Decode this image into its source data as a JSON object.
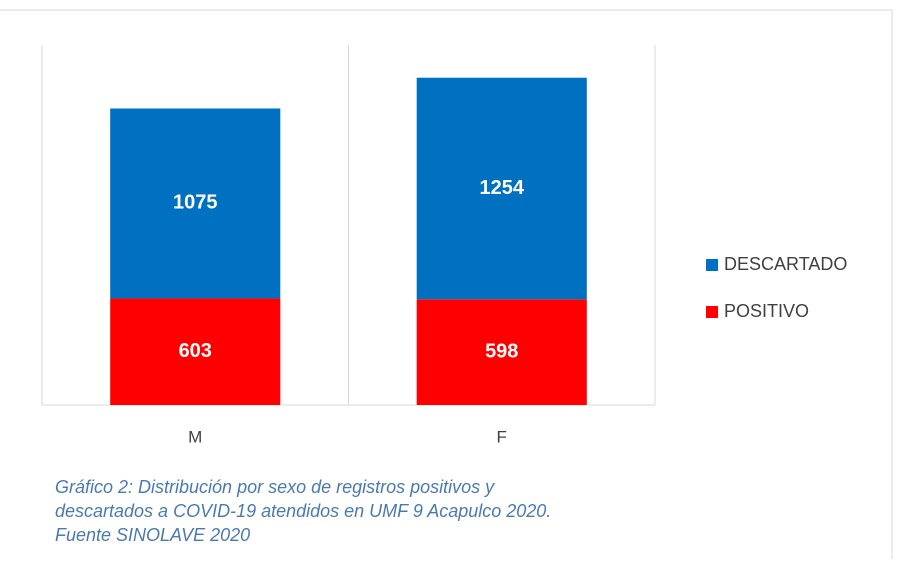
{
  "chart_data": {
    "type": "stacked_bar",
    "categories": [
      "M",
      "F"
    ],
    "series": [
      {
        "name": "POSITIVO",
        "color": "#ff0000",
        "values": [
          603,
          598
        ]
      },
      {
        "name": "DESCARTADO",
        "color": "#0070c0",
        "values": [
          1075,
          1254
        ]
      }
    ],
    "legend": "right",
    "caption": [
      "Gráfico 2: Distribución por sexo de registros positivos y",
      "descartados a COVID-19 atendidos en UMF 9 Acapulco 2020.",
      "Fuente SINOLAVE 2020"
    ]
  }
}
